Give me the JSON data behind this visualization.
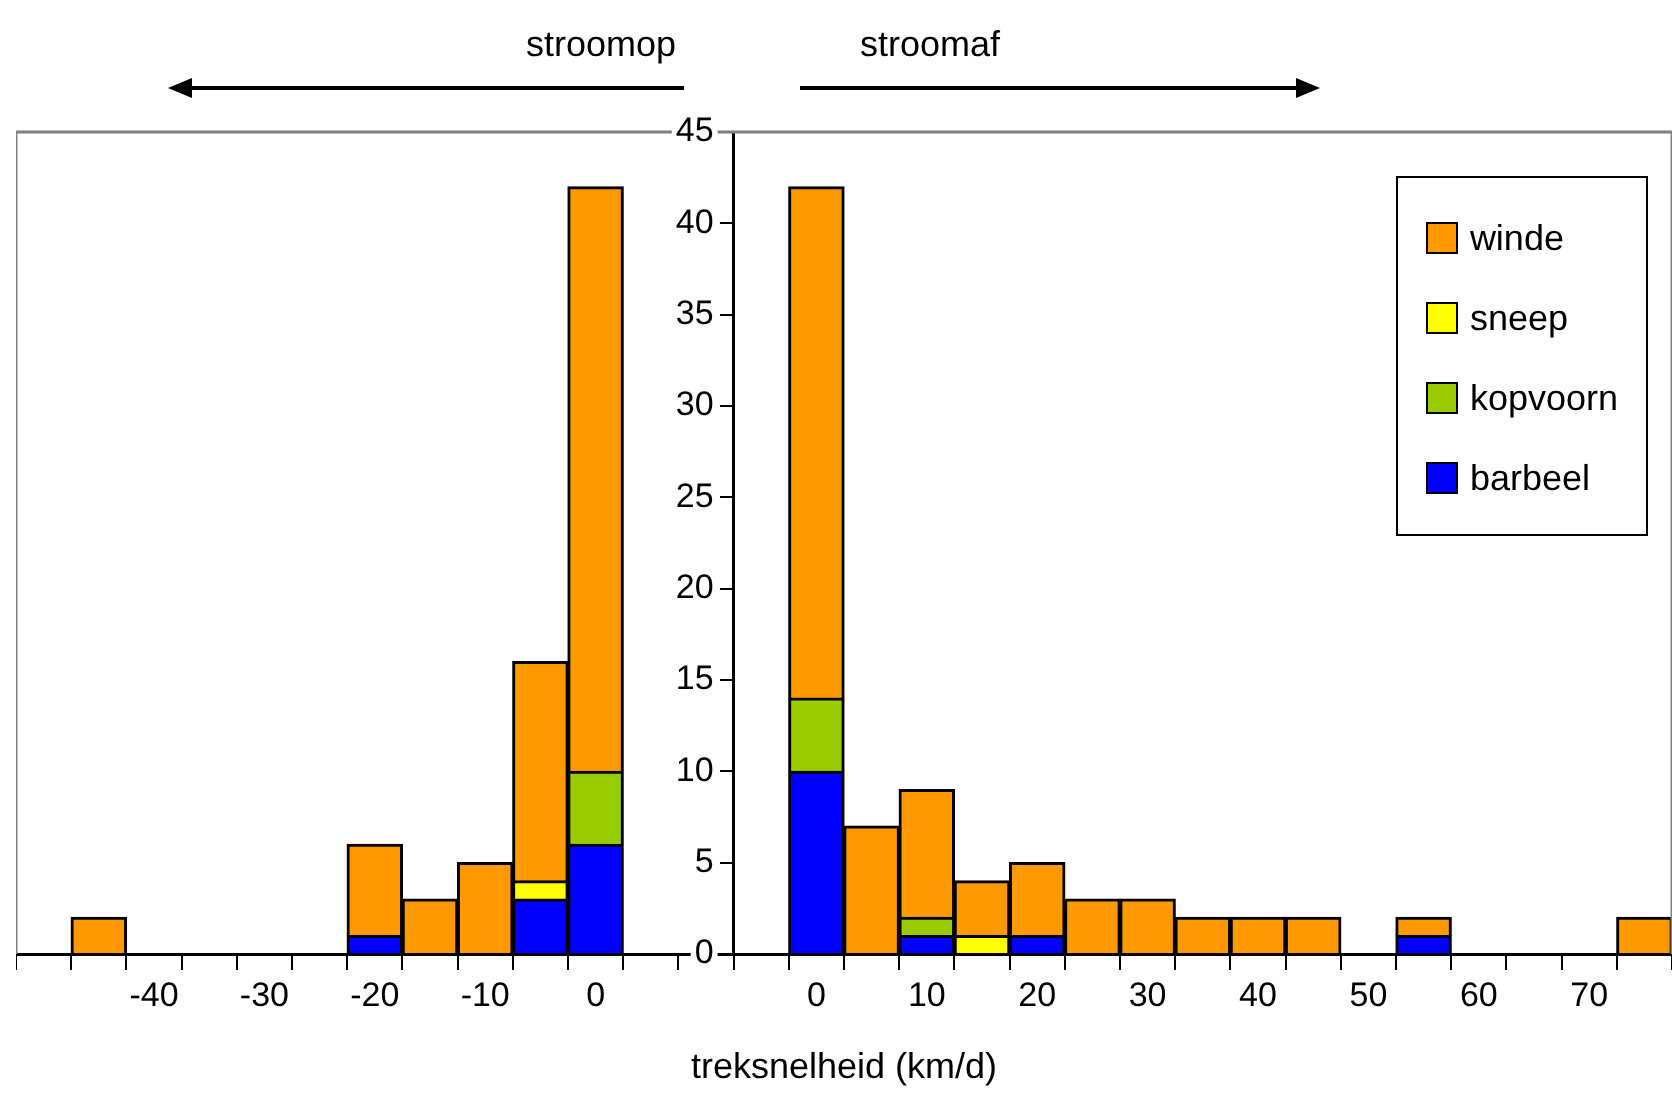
{
  "chart_data": {
    "type": "bar",
    "stacked": true,
    "xlabel": "treksnelheid (km/d)",
    "annotations": [
      "stroomop",
      "stroomaf"
    ],
    "categories": [
      null,
      null,
      "-40",
      null,
      "-30",
      null,
      "-20",
      null,
      "-10",
      null,
      "0",
      null,
      null,
      null,
      "0",
      null,
      "10",
      null,
      "20",
      null,
      "30",
      null,
      "40",
      null,
      "50",
      null,
      "60",
      null,
      "70",
      null
    ],
    "series": [
      {
        "name": "barbeel",
        "color": "#0000ff",
        "values": [
          0,
          0,
          0,
          0,
          0,
          0,
          1,
          0,
          0,
          3,
          6,
          null,
          null,
          null,
          10,
          0,
          1,
          0,
          1,
          0,
          0,
          0,
          0,
          0,
          0,
          1,
          0,
          0,
          0,
          0
        ]
      },
      {
        "name": "kopvoorn",
        "color": "#99cc00",
        "values": [
          0,
          0,
          0,
          0,
          0,
          0,
          0,
          0,
          0,
          0,
          4,
          null,
          null,
          null,
          4,
          0,
          1,
          0,
          0,
          0,
          0,
          0,
          0,
          0,
          0,
          0,
          0,
          0,
          0,
          0
        ]
      },
      {
        "name": "sneep",
        "color": "#ffff00",
        "values": [
          0,
          0,
          0,
          0,
          0,
          0,
          0,
          0,
          0,
          1,
          0,
          null,
          null,
          null,
          0,
          0,
          0,
          1,
          0,
          0,
          0,
          0,
          0,
          0,
          0,
          0,
          0,
          0,
          0,
          0
        ]
      },
      {
        "name": "winde",
        "color": "#ff9900",
        "values": [
          0,
          2,
          0,
          0,
          0,
          0,
          5,
          3,
          5,
          12,
          32,
          null,
          null,
          null,
          28,
          7,
          7,
          3,
          4,
          3,
          3,
          2,
          2,
          2,
          0,
          1,
          0,
          0,
          0,
          2
        ]
      }
    ],
    "ylim": [
      0,
      45
    ],
    "yticks": [
      0,
      5,
      10,
      15,
      20,
      25,
      30,
      35,
      40,
      45
    ],
    "grid": false,
    "legend": "top right"
  }
}
